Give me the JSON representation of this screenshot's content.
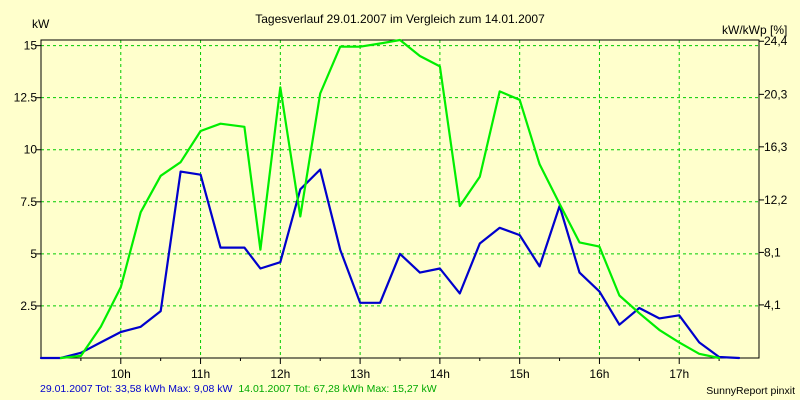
{
  "chart_data": {
    "type": "line",
    "title": "Tagesverlauf 29.01.2007 im Vergleich zum 14.01.2007",
    "ylabel_left": "kW",
    "ylabel_right": "kW/kWp [%]",
    "xlim": [
      9.0,
      18.0
    ],
    "ylim": [
      0,
      15.27
    ],
    "x_ticks": [
      10,
      11,
      12,
      13,
      14,
      15,
      16,
      17
    ],
    "x_tick_labels": [
      "10h",
      "11h",
      "12h",
      "13h",
      "14h",
      "15h",
      "16h",
      "17h"
    ],
    "y_left_ticks": [
      2.5,
      5,
      7.5,
      10,
      12.5,
      15
    ],
    "y_left_tick_labels": [
      "2.5",
      "5",
      "7.5",
      "10",
      "12.5",
      "15"
    ],
    "y_right_ticks": [
      2.55,
      5.07,
      7.59,
      10.14,
      12.66,
      15.21
    ],
    "y_right_tick_labels": [
      "4,1",
      "8,1",
      "12,2",
      "16,3",
      "20,3",
      "24,4"
    ],
    "grid": true,
    "colors": {
      "background": "#ffffcc",
      "grid": "#00cc00",
      "axis": "#000000",
      "series_blue": "#0000cc",
      "series_green": "#00ee00"
    },
    "series": [
      {
        "name": "29.01.2007",
        "color": "#0000cc",
        "points": [
          [
            9.0,
            0.0
          ],
          [
            9.25,
            0.0
          ],
          [
            9.5,
            0.25
          ],
          [
            9.75,
            0.75
          ],
          [
            10.0,
            1.25
          ],
          [
            10.25,
            1.5
          ],
          [
            10.5,
            2.25
          ],
          [
            10.75,
            8.95
          ],
          [
            11.0,
            8.8
          ],
          [
            11.25,
            5.3
          ],
          [
            11.55,
            5.3
          ],
          [
            11.75,
            4.3
          ],
          [
            12.0,
            4.6
          ],
          [
            12.25,
            8.1
          ],
          [
            12.5,
            9.05
          ],
          [
            12.75,
            5.2
          ],
          [
            13.0,
            2.65
          ],
          [
            13.25,
            2.65
          ],
          [
            13.5,
            5.0
          ],
          [
            13.75,
            4.1
          ],
          [
            14.0,
            4.3
          ],
          [
            14.25,
            3.1
          ],
          [
            14.5,
            5.5
          ],
          [
            14.75,
            6.25
          ],
          [
            15.0,
            5.9
          ],
          [
            15.25,
            4.4
          ],
          [
            15.5,
            7.3
          ],
          [
            15.75,
            4.1
          ],
          [
            16.0,
            3.2
          ],
          [
            16.25,
            1.6
          ],
          [
            16.5,
            2.4
          ],
          [
            16.75,
            1.9
          ],
          [
            17.0,
            2.05
          ],
          [
            17.25,
            0.75
          ],
          [
            17.5,
            0.05
          ],
          [
            17.75,
            0.0
          ]
        ]
      },
      {
        "name": "14.01.2007",
        "color": "#00ee00",
        "points": [
          [
            9.25,
            0.0
          ],
          [
            9.5,
            0.1
          ],
          [
            9.75,
            1.5
          ],
          [
            10.0,
            3.4
          ],
          [
            10.25,
            7.0
          ],
          [
            10.5,
            8.75
          ],
          [
            10.75,
            9.4
          ],
          [
            11.0,
            10.9
          ],
          [
            11.25,
            11.25
          ],
          [
            11.55,
            11.1
          ],
          [
            11.75,
            5.2
          ],
          [
            12.0,
            13.0
          ],
          [
            12.25,
            6.8
          ],
          [
            12.5,
            12.7
          ],
          [
            12.75,
            14.95
          ],
          [
            13.0,
            14.95
          ],
          [
            13.25,
            15.1
          ],
          [
            13.5,
            15.27
          ],
          [
            13.75,
            14.5
          ],
          [
            14.0,
            14.0
          ],
          [
            14.25,
            7.3
          ],
          [
            14.5,
            8.7
          ],
          [
            14.75,
            12.8
          ],
          [
            15.0,
            12.4
          ],
          [
            15.25,
            9.3
          ],
          [
            15.5,
            7.4
          ],
          [
            15.75,
            5.55
          ],
          [
            16.0,
            5.35
          ],
          [
            16.25,
            3.0
          ],
          [
            16.5,
            2.15
          ],
          [
            16.75,
            1.35
          ],
          [
            17.0,
            0.75
          ],
          [
            17.25,
            0.2
          ],
          [
            17.5,
            0.0
          ]
        ]
      }
    ]
  },
  "footer": {
    "left_blue": "29.01.2007 Tot: 33,58 kWh Max: 9,08 kW",
    "left_green": "14.01.2007 Tot: 67,28 kWh Max: 15,27 kW",
    "right": "SunnyReport pinxit"
  }
}
